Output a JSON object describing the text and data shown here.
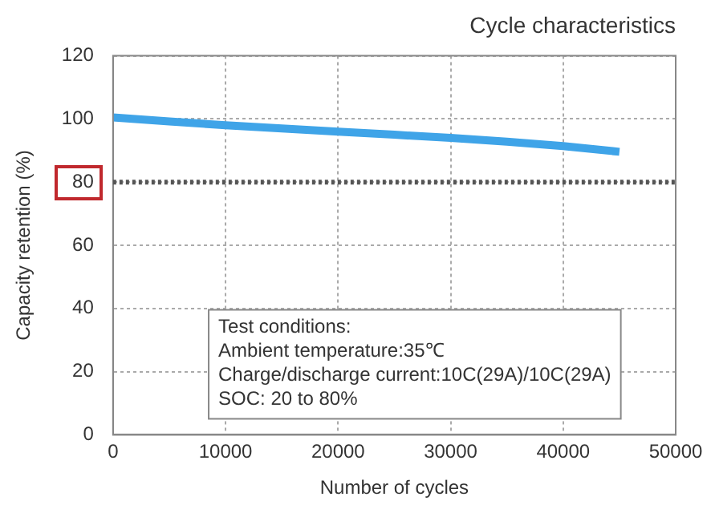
{
  "chart_data": {
    "type": "line",
    "title": "Cycle characteristics",
    "xlabel": "Number of cycles",
    "ylabel": "Capacity retention (%)",
    "x": [
      0,
      5000,
      10000,
      15000,
      20000,
      25000,
      30000,
      35000,
      40000,
      45000
    ],
    "series": [
      {
        "color": "#3fa4e8",
        "values": [
          100.5,
          99.2,
          98,
          97,
          96,
          95,
          94,
          92.8,
          91.4,
          89.6
        ]
      }
    ],
    "xlim": [
      0,
      50000
    ],
    "xticks": [
      0,
      10000,
      20000,
      30000,
      40000,
      50000
    ],
    "ylim": [
      0,
      120
    ],
    "yticks": [
      0,
      20,
      40,
      60,
      80,
      100,
      120
    ],
    "grid": true,
    "marker": "none",
    "line_style": "solid",
    "ref_lines": [
      {
        "axis": "y",
        "value": 80,
        "color": "#555555",
        "line_style": "dotted"
      }
    ],
    "annotations": [
      "Test conditions:",
      "Ambient temperature:35℃",
      "Charge/discharge current:10C(29A)/10C(29A)",
      "SOC: 20 to 80%"
    ]
  }
}
